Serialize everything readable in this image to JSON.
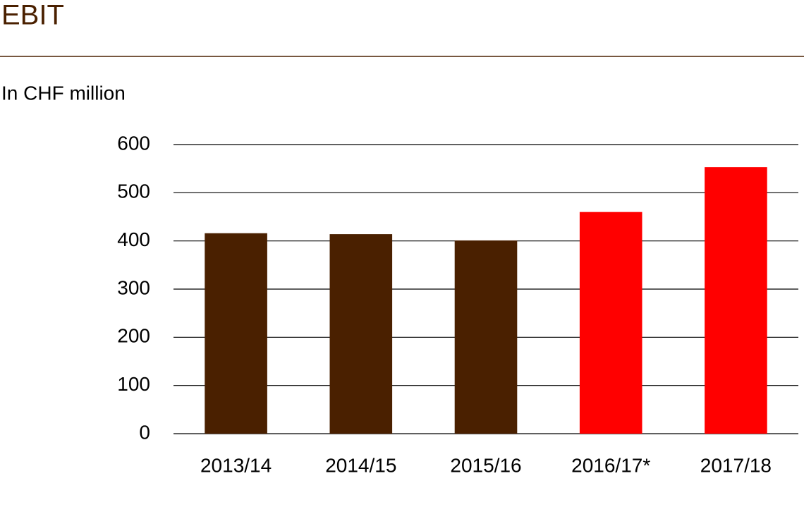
{
  "chart_data": {
    "type": "bar",
    "title": "EBIT",
    "subtitle": "In CHF million",
    "categories": [
      "2013/14",
      "2014/15",
      "2015/16",
      "2016/17*",
      "2017/18"
    ],
    "values": [
      416,
      414,
      401,
      460,
      553
    ],
    "colors": [
      "#4a2000",
      "#4a2000",
      "#4a2000",
      "#ff0000",
      "#ff0000"
    ],
    "ylim": [
      0,
      600
    ],
    "yticks": [
      0,
      100,
      200,
      300,
      400,
      500,
      600
    ],
    "grid": true
  }
}
